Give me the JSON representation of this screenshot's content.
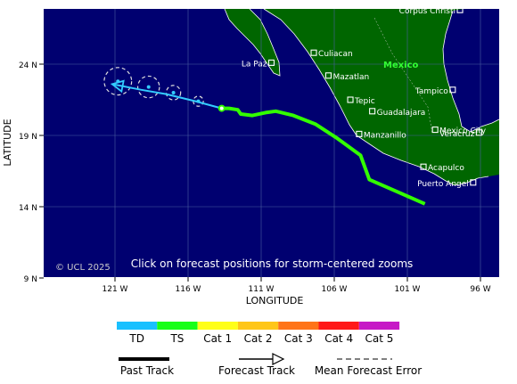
{
  "map": {
    "lat_ticks": [
      {
        "label": "24 N",
        "lat": 24
      },
      {
        "label": "19 N",
        "lat": 19
      },
      {
        "label": "14 N",
        "lat": 14
      },
      {
        "label": "9 N",
        "lat": 9
      }
    ],
    "lon_ticks": [
      {
        "label": "121 W",
        "lon": -121
      },
      {
        "label": "116 W",
        "lon": -116
      },
      {
        "label": "111 W",
        "lon": -111
      },
      {
        "label": "106 W",
        "lon": -106
      },
      {
        "label": "101 W",
        "lon": -101
      },
      {
        "label": "96 W",
        "lon": -96
      }
    ],
    "xlabel": "LONGITUDE",
    "ylabel": "LATITUDE",
    "country_label": "Mexico",
    "copyright": "© UCL 2025",
    "instruction": "Click on forecast positions for storm-centered zooms",
    "cities": [
      {
        "name": "Corpus Christi",
        "lat": 27.8,
        "lon": -97.4
      },
      {
        "name": "La Paz",
        "lat": 24.1,
        "lon": -110.3
      },
      {
        "name": "Culiacan",
        "lat": 24.8,
        "lon": -107.4
      },
      {
        "name": "Mazatlan",
        "lat": 23.2,
        "lon": -106.4
      },
      {
        "name": "Tampico",
        "lat": 22.2,
        "lon": -97.9
      },
      {
        "name": "Tepic",
        "lat": 21.5,
        "lon": -104.9
      },
      {
        "name": "Guadalajara",
        "lat": 20.7,
        "lon": -103.4
      },
      {
        "name": "Mexico City",
        "lat": 19.4,
        "lon": -99.1
      },
      {
        "name": "Veracruz",
        "lat": 19.2,
        "lon": -96.1
      },
      {
        "name": "Manzanillo",
        "lat": 19.1,
        "lon": -104.3
      },
      {
        "name": "Acapulco",
        "lat": 16.8,
        "lon": -99.9
      },
      {
        "name": "Puerto Angel",
        "lat": 15.7,
        "lon": -96.5
      }
    ],
    "past_track": [
      {
        "lat": 14.2,
        "lon": -99.8
      },
      {
        "lat": 15.1,
        "lon": -101.8
      },
      {
        "lat": 15.9,
        "lon": -103.6
      },
      {
        "lat": 17.6,
        "lon": -104.2
      },
      {
        "lat": 18.8,
        "lon": -105.8
      },
      {
        "lat": 19.8,
        "lon": -107.3
      },
      {
        "lat": 20.4,
        "lon": -108.8
      },
      {
        "lat": 20.7,
        "lon": -110.0
      },
      {
        "lat": 20.6,
        "lon": -110.7
      },
      {
        "lat": 20.4,
        "lon": -111.6
      },
      {
        "lat": 20.5,
        "lon": -112.4
      },
      {
        "lat": 20.8,
        "lon": -112.6
      },
      {
        "lat": 20.9,
        "lon": -113.2
      },
      {
        "lat": 20.9,
        "lon": -113.9
      }
    ],
    "past_track_color": "#33ff00",
    "current_position": {
      "lat": 20.9,
      "lon": -113.7
    },
    "forecast_track": [
      {
        "lat": 20.9,
        "lon": -113.7
      },
      {
        "lat": 21.4,
        "lon": -115.5
      },
      {
        "lat": 21.9,
        "lon": -117.5
      },
      {
        "lat": 22.2,
        "lon": -119.2
      },
      {
        "lat": 22.6,
        "lon": -121.2
      }
    ],
    "forecast_points": [
      {
        "lat": 21.4,
        "lon": -115.3,
        "error_radius_deg": 0.35
      },
      {
        "lat": 22.0,
        "lon": -117.0,
        "error_radius_deg": 0.5
      },
      {
        "lat": 22.4,
        "lon": -118.7,
        "error_radius_deg": 0.75
      },
      {
        "lat": 22.8,
        "lon": -120.8,
        "error_radius_deg": 0.95
      }
    ],
    "forecast_arrow_color": "#33ccff",
    "colors": {
      "ocean": "#000070",
      "land": "#006600",
      "grid": "#4a5fa0",
      "country_label": "#33ff33"
    }
  },
  "legend": {
    "categories": [
      {
        "label": "TD",
        "color": "#19c0ff"
      },
      {
        "label": "TS",
        "color": "#19ff19"
      },
      {
        "label": "Cat 1",
        "color": "#ffff19"
      },
      {
        "label": "Cat 2",
        "color": "#ffc619"
      },
      {
        "label": "Cat 3",
        "color": "#ff7419"
      },
      {
        "label": "Cat 4",
        "color": "#ff1919"
      },
      {
        "label": "Cat 5",
        "color": "#c619c6"
      }
    ],
    "past_track_label": "Past Track",
    "forecast_track_label": "Forecast Track",
    "error_label": "Mean Forecast Error"
  }
}
